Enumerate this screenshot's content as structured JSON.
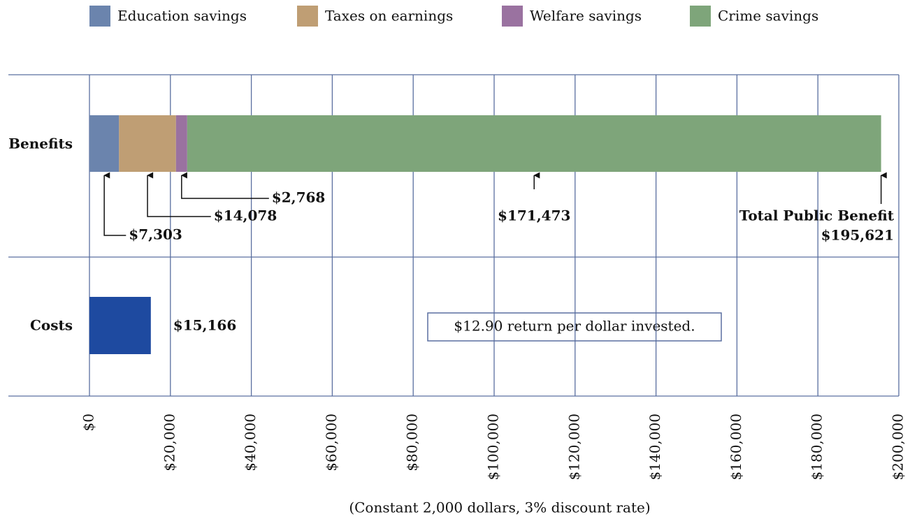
{
  "chart_data": {
    "type": "stacked-barh",
    "categories": [
      "Benefits",
      "Costs"
    ],
    "series": [
      {
        "name": "Education savings",
        "color": "#6b84ad",
        "values": [
          7303,
          null
        ],
        "value_labels": [
          "$7,303",
          null
        ]
      },
      {
        "name": "Taxes on earnings",
        "color": "#bf9e74",
        "values": [
          14078,
          null
        ],
        "value_labels": [
          "$14,078",
          null
        ]
      },
      {
        "name": "Welfare savings",
        "color": "#9a72a0",
        "values": [
          2768,
          null
        ],
        "value_labels": [
          "$2,768",
          null
        ]
      },
      {
        "name": "Crime savings",
        "color": "#7ea57a",
        "values": [
          171473,
          null
        ],
        "value_labels": [
          "$171,473",
          null
        ]
      }
    ],
    "costs": {
      "color": "#1e4aa0",
      "values": [
        null,
        15166
      ],
      "value_labels": [
        null,
        "$15,166"
      ]
    },
    "total": {
      "label": "Total Public Benefit",
      "value": 195621,
      "value_label": "$195,621"
    },
    "annotation": "$12.90 return per dollar invested.",
    "xlabel": "(Constant 2,000 dollars, 3% discount rate)",
    "xlim": [
      0,
      200000
    ],
    "xticks": [
      {
        "value": 0,
        "label": "$0"
      },
      {
        "value": 20000,
        "label": "$20,000"
      },
      {
        "value": 40000,
        "label": "$40,000"
      },
      {
        "value": 60000,
        "label": "$60,000"
      },
      {
        "value": 80000,
        "label": "$80,000"
      },
      {
        "value": 100000,
        "label": "$100,000"
      },
      {
        "value": 120000,
        "label": "$120,000"
      },
      {
        "value": 140000,
        "label": "$140,000"
      },
      {
        "value": 160000,
        "label": "$160,000"
      },
      {
        "value": 180000,
        "label": "$180,000"
      },
      {
        "value": 200000,
        "label": "$200,000"
      }
    ],
    "grid": true
  }
}
